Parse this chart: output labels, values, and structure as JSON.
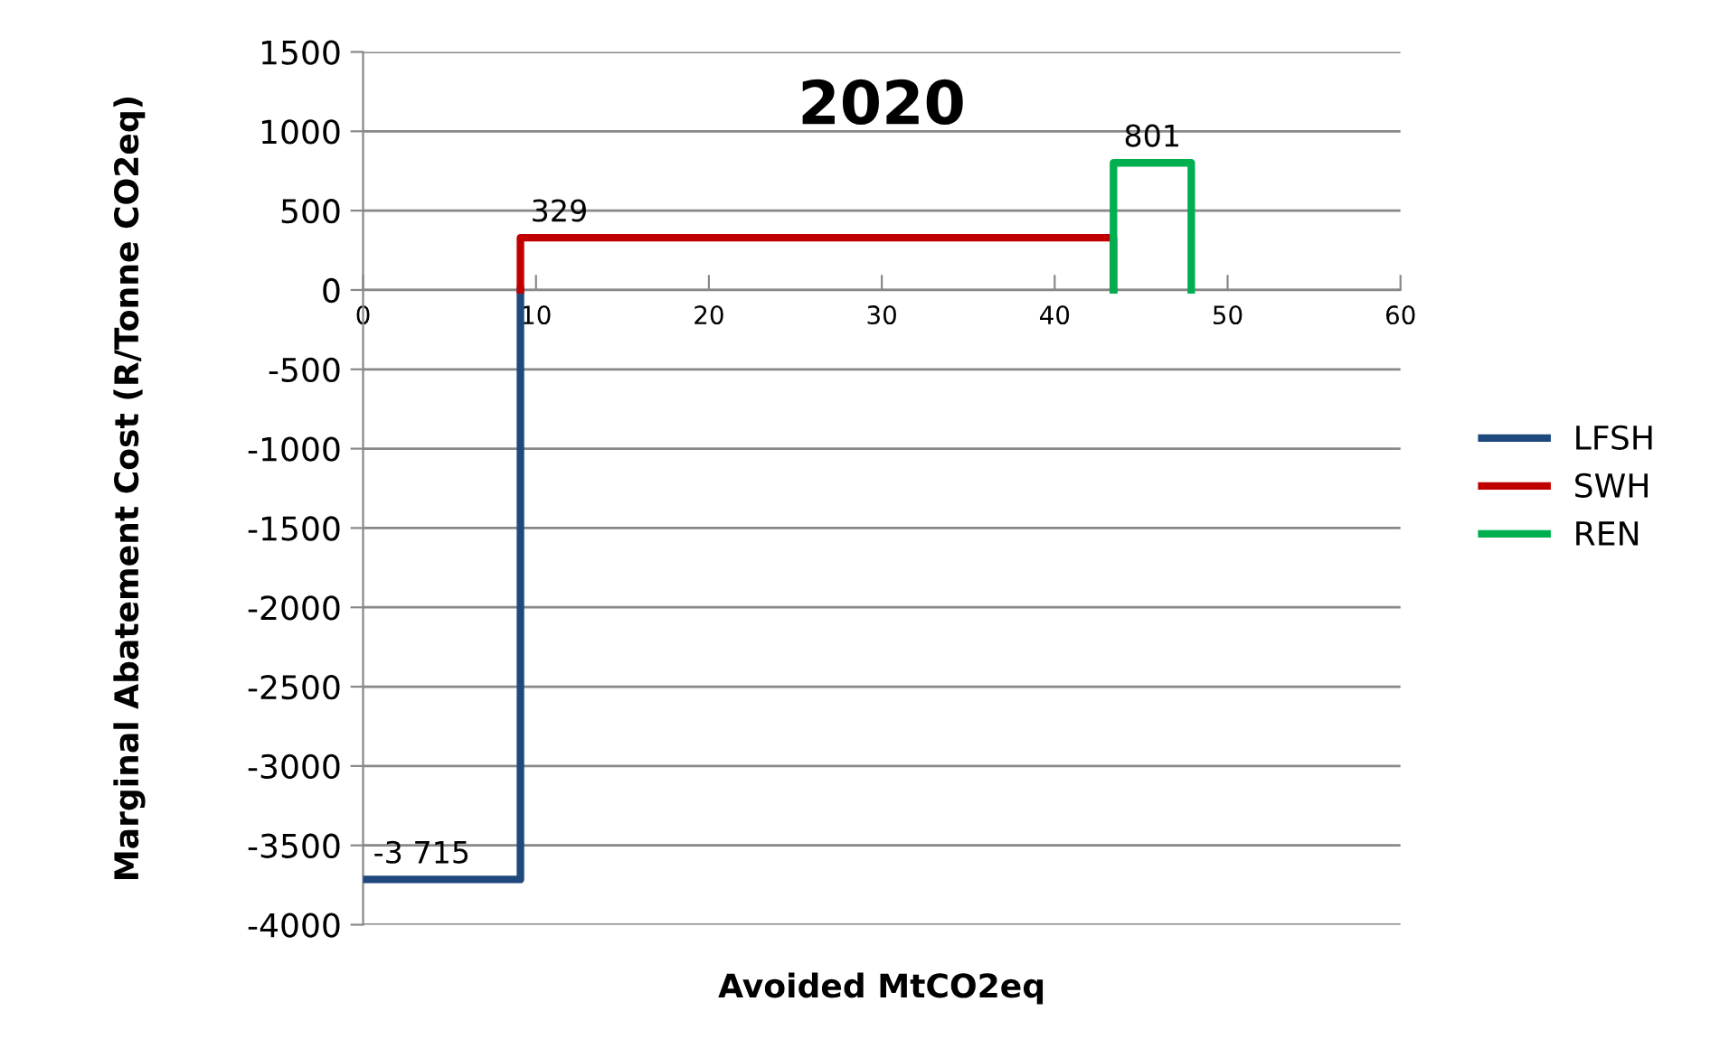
{
  "chart_data": {
    "type": "line",
    "title": "2020",
    "xlabel": "Avoided MtCO2eq",
    "ylabel": "Marginal Abatement Cost (R/Tonne CO2eq)",
    "series": [
      {
        "name": "LFSH",
        "color": "#1f497d",
        "x": [
          0,
          9.1,
          9.1
        ],
        "values": [
          -3715,
          -3715,
          0
        ],
        "value_labels": [
          "-3 715",
          null,
          null
        ]
      },
      {
        "name": "SWH",
        "color": "#c00000",
        "x": [
          9.1,
          9.1,
          43.4,
          43.4
        ],
        "values": [
          0,
          329,
          329,
          0
        ],
        "value_labels": [
          null,
          "329",
          null,
          null
        ]
      },
      {
        "name": "REN",
        "color": "#00b050",
        "x": [
          43.4,
          43.4,
          47.9,
          47.9
        ],
        "values": [
          0,
          801,
          801,
          0
        ],
        "value_labels": [
          null,
          "801",
          null,
          null
        ]
      }
    ],
    "xlim": [
      0,
      60
    ],
    "xticks": [
      0,
      10,
      20,
      30,
      40,
      50,
      60
    ],
    "ylim": [
      -4000,
      1500
    ],
    "yticks": [
      -4000,
      -3500,
      -3000,
      -2500,
      -2000,
      -1500,
      -1000,
      -500,
      0,
      500,
      1000,
      1500
    ],
    "grid": "y",
    "legend": "right",
    "marker": "none",
    "line_style": "solid"
  }
}
